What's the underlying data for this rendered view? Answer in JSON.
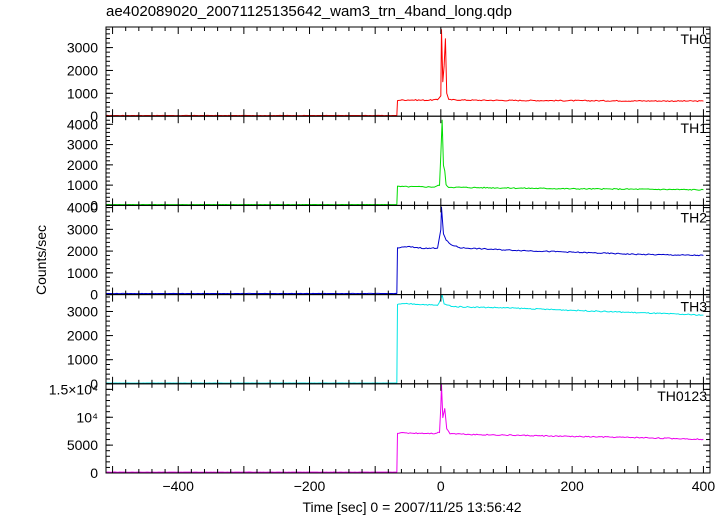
{
  "chart_data": {
    "type": "line",
    "title": "ae402089020_20071125135642_wam3_trn_4band_long.qdp",
    "xlabel": "Time [sec] 0 = 2007/11/25 13:56:42",
    "ylabel": "Counts/sec",
    "xlim": [
      -510,
      410
    ],
    "x_ticks": [
      -400,
      -200,
      0,
      200,
      400
    ],
    "x_tick_labels": [
      "−400",
      "−200",
      "0",
      "200",
      "400"
    ],
    "panels": [
      {
        "name": "TH0",
        "color": "#ff0000",
        "ylim": [
          0,
          3900
        ],
        "y_ticks": [
          0,
          1000,
          2000,
          3000
        ],
        "y_tick_labels": [
          "0",
          "1000",
          "2000",
          "3000"
        ],
        "points": [
          [
            -510,
            30
          ],
          [
            -67,
            30
          ],
          [
            -66,
            700
          ],
          [
            -50,
            710
          ],
          [
            -20,
            700
          ],
          [
            -5,
            720
          ],
          [
            0,
            900
          ],
          [
            1,
            3800
          ],
          [
            3,
            1500
          ],
          [
            5,
            2200
          ],
          [
            7,
            3400
          ],
          [
            9,
            1000
          ],
          [
            12,
            720
          ],
          [
            50,
            700
          ],
          [
            100,
            690
          ],
          [
            200,
            680
          ],
          [
            300,
            670
          ],
          [
            400,
            660
          ]
        ]
      },
      {
        "name": "TH1",
        "color": "#00dd00",
        "ylim": [
          0,
          4400
        ],
        "y_ticks": [
          0,
          1000,
          2000,
          3000,
          4000
        ],
        "y_tick_labels": [
          "0",
          "1000",
          "2000",
          "3000",
          "4000"
        ],
        "points": [
          [
            -510,
            40
          ],
          [
            -67,
            40
          ],
          [
            -66,
            930
          ],
          [
            -40,
            920
          ],
          [
            -10,
            910
          ],
          [
            -2,
            1000
          ],
          [
            0,
            2500
          ],
          [
            2,
            4200
          ],
          [
            4,
            2000
          ],
          [
            6,
            1700
          ],
          [
            8,
            1000
          ],
          [
            12,
            900
          ],
          [
            50,
            880
          ],
          [
            100,
            860
          ],
          [
            200,
            820
          ],
          [
            300,
            800
          ],
          [
            400,
            770
          ]
        ]
      },
      {
        "name": "TH2",
        "color": "#0000cc",
        "ylim": [
          0,
          4100
        ],
        "y_ticks": [
          0,
          1000,
          2000,
          3000,
          4000
        ],
        "y_tick_labels": [
          "0",
          "1000",
          "2000",
          "3000",
          "4000"
        ],
        "points": [
          [
            -510,
            50
          ],
          [
            -67,
            50
          ],
          [
            -66,
            2150
          ],
          [
            -50,
            2200
          ],
          [
            -20,
            2120
          ],
          [
            -5,
            2150
          ],
          [
            0,
            3000
          ],
          [
            1,
            4000
          ],
          [
            4,
            2800
          ],
          [
            8,
            2500
          ],
          [
            15,
            2300
          ],
          [
            30,
            2150
          ],
          [
            100,
            2050
          ],
          [
            200,
            1950
          ],
          [
            300,
            1850
          ],
          [
            400,
            1800
          ]
        ]
      },
      {
        "name": "TH3",
        "color": "#00e5e5",
        "ylim": [
          0,
          3700
        ],
        "y_ticks": [
          0,
          1000,
          2000,
          3000
        ],
        "y_tick_labels": [
          "0",
          "1000",
          "2000",
          "3000"
        ],
        "points": [
          [
            -510,
            30
          ],
          [
            -67,
            30
          ],
          [
            -66,
            3300
          ],
          [
            -50,
            3320
          ],
          [
            -20,
            3280
          ],
          [
            -5,
            3250
          ],
          [
            0,
            3500
          ],
          [
            2,
            3700
          ],
          [
            5,
            3300
          ],
          [
            20,
            3200
          ],
          [
            100,
            3150
          ],
          [
            200,
            3050
          ],
          [
            300,
            2950
          ],
          [
            400,
            2850
          ]
        ]
      },
      {
        "name": "TH0123",
        "color": "#ee00ee",
        "ylim": [
          0,
          16000
        ],
        "y_ticks": [
          0,
          5000,
          10000,
          15000
        ],
        "y_tick_labels": [
          "0",
          "5000",
          "10⁴",
          "1.5×10⁴"
        ],
        "points": [
          [
            -510,
            150
          ],
          [
            -67,
            150
          ],
          [
            -66,
            7200
          ],
          [
            -40,
            7150
          ],
          [
            -10,
            7100
          ],
          [
            -2,
            7300
          ],
          [
            0,
            12000
          ],
          [
            1,
            15800
          ],
          [
            3,
            10000
          ],
          [
            6,
            11500
          ],
          [
            9,
            8000
          ],
          [
            14,
            7100
          ],
          [
            50,
            6900
          ],
          [
            100,
            6800
          ],
          [
            200,
            6550
          ],
          [
            300,
            6350
          ],
          [
            400,
            6050
          ]
        ]
      }
    ]
  }
}
